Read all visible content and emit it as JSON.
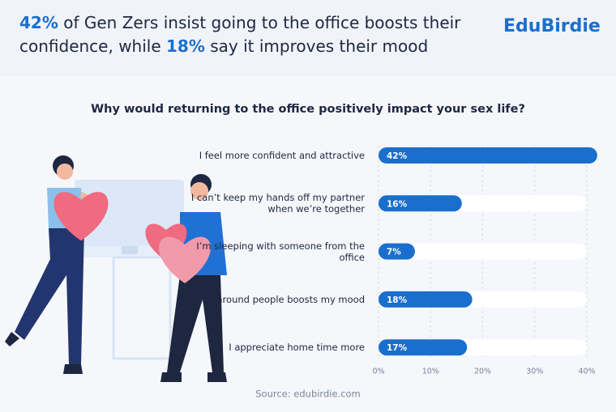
{
  "header": {
    "title_parts": [
      {
        "text": "42%",
        "emphasis": true
      },
      {
        "text": " of Gen Zers insist going to the office boosts their confidence, while ",
        "emphasis": false
      },
      {
        "text": "18%",
        "emphasis": true
      },
      {
        "text": " say it improves their mood",
        "emphasis": false
      }
    ],
    "logo": "EduBirdie"
  },
  "chart_data": {
    "type": "bar",
    "orientation": "horizontal",
    "title": "Why would returning to the office positively impact your sex life?",
    "categories": [
      "I feel more confident and attractive",
      "I can’t keep my hands off my partner when we’re together",
      "I’m sleeping with someone from the office",
      "Being around people boosts my mood",
      "I appreciate home time more"
    ],
    "values": [
      42,
      16,
      7,
      18,
      17
    ],
    "value_labels": [
      "42%",
      "16%",
      "7%",
      "18%",
      "17%"
    ],
    "color": "#1a6fce",
    "xlim": [
      0,
      40
    ],
    "xticks": [
      {
        "value": 0,
        "label": "0%"
      },
      {
        "value": 10,
        "label": "10%"
      },
      {
        "value": 20,
        "label": "20%"
      },
      {
        "value": 30,
        "label": "30%"
      },
      {
        "value": 40,
        "label": "40%"
      }
    ],
    "grid": true
  },
  "source": "Source: edubirdie.com"
}
